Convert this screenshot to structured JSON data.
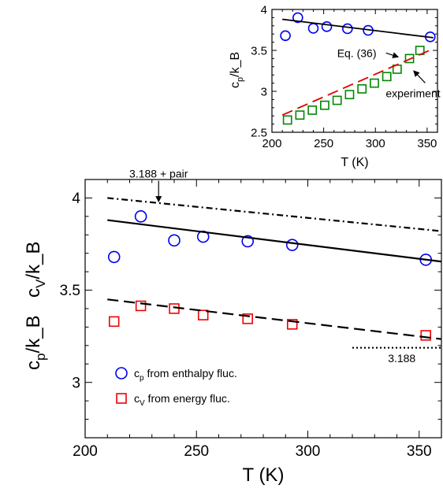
{
  "chart_data": [
    {
      "type": "scatter",
      "title": "",
      "xlabel": "T (K)",
      "ylabel_lines": [
        "c_p/k_B",
        "c_V/k_B"
      ],
      "xlim": [
        200,
        360
      ],
      "ylim": [
        2.7,
        4.1
      ],
      "xticks": [
        200,
        250,
        300,
        350
      ],
      "yticks": [
        3,
        3.5,
        4
      ],
      "x_tick_labels": [
        "200",
        "250",
        "300",
        "350"
      ],
      "y_tick_labels": [
        "3",
        "3.5",
        "4"
      ],
      "grid": false,
      "legend_position": "bottom-left",
      "legend": [
        {
          "label_main": "c",
          "label_sub": "p",
          "label_rest": " from enthalpy fluc.",
          "marker": "circle",
          "color": "#0000ee"
        },
        {
          "label_main": "c",
          "label_sub": "V",
          "label_rest": " from energy fluc.",
          "marker": "square",
          "color": "#ee0000"
        }
      ],
      "series": [
        {
          "name": "cp from enthalpy fluc.",
          "kind": "points",
          "marker": "circle",
          "color": "#0000ee",
          "x": [
            213,
            225,
            240,
            253,
            273,
            293,
            353
          ],
          "y": [
            3.68,
            3.9,
            3.77,
            3.79,
            3.765,
            3.745,
            3.665
          ]
        },
        {
          "name": "cV from energy fluc.",
          "kind": "points",
          "marker": "square",
          "color": "#ee0000",
          "x": [
            213,
            225,
            240,
            253,
            273,
            293,
            353
          ],
          "y": [
            3.33,
            3.415,
            3.4,
            3.365,
            3.345,
            3.315,
            3.255
          ]
        },
        {
          "kind": "line",
          "style": "solid",
          "color": "#000000",
          "x": [
            210,
            360
          ],
          "y": [
            3.88,
            3.655
          ]
        },
        {
          "kind": "line",
          "style": "dashed",
          "color": "#000000",
          "x": [
            210,
            360
          ],
          "y": [
            3.45,
            3.235
          ]
        },
        {
          "kind": "line",
          "style": "dashdot",
          "color": "#000000",
          "x": [
            210,
            360
          ],
          "y": [
            4.0,
            3.82
          ]
        },
        {
          "kind": "line",
          "style": "dotted",
          "color": "#000000",
          "x": [
            320,
            360
          ],
          "y": [
            3.188,
            3.188
          ]
        }
      ],
      "annotations": [
        {
          "text": "3.188 + pair",
          "x": 233,
          "y": 4.11,
          "arrow_to": {
            "x": 233,
            "y": 3.98
          }
        },
        {
          "text": "3.188",
          "x": 336,
          "y": 3.11
        }
      ]
    },
    {
      "type": "scatter",
      "title": "",
      "xlabel": "T (K)",
      "ylabel": "c_p/k_B",
      "xlim": [
        200,
        360
      ],
      "ylim": [
        2.5,
        4.0
      ],
      "xticks": [
        200,
        250,
        300,
        350
      ],
      "yticks": [
        2.5,
        3,
        3.5,
        4
      ],
      "x_tick_labels": [
        "200",
        "250",
        "300",
        "350"
      ],
      "y_tick_labels": [
        "2.5",
        "3",
        "3.5",
        "4"
      ],
      "grid": false,
      "series": [
        {
          "kind": "points",
          "marker": "circle",
          "color": "#0000ee",
          "x": [
            213,
            225,
            240,
            253,
            273,
            293,
            353
          ],
          "y": [
            3.68,
            3.9,
            3.77,
            3.79,
            3.765,
            3.745,
            3.665
          ]
        },
        {
          "kind": "points",
          "marker": "square",
          "color": "#008800",
          "x": [
            215,
            227,
            239,
            251,
            263,
            275,
            287,
            299,
            311,
            321,
            333,
            343
          ],
          "y": [
            2.65,
            2.71,
            2.77,
            2.83,
            2.89,
            2.96,
            3.03,
            3.1,
            3.18,
            3.27,
            3.4,
            3.5
          ]
        },
        {
          "kind": "line",
          "style": "solid",
          "color": "#000000",
          "x": [
            210,
            356
          ],
          "y": [
            3.88,
            3.655
          ]
        },
        {
          "kind": "line",
          "style": "dashed",
          "color": "#dd0000",
          "x": [
            210,
            356
          ],
          "y": [
            2.71,
            3.52
          ]
        }
      ],
      "annotations": [
        {
          "text": "Eq. (36)",
          "x": 263,
          "y": 3.42,
          "arrow_to": {
            "x": 322,
            "y": 3.42
          }
        },
        {
          "text": "experiment",
          "x": 310,
          "y": 2.93,
          "arrow_to": {
            "x": 337,
            "y": 3.25
          }
        }
      ]
    }
  ]
}
